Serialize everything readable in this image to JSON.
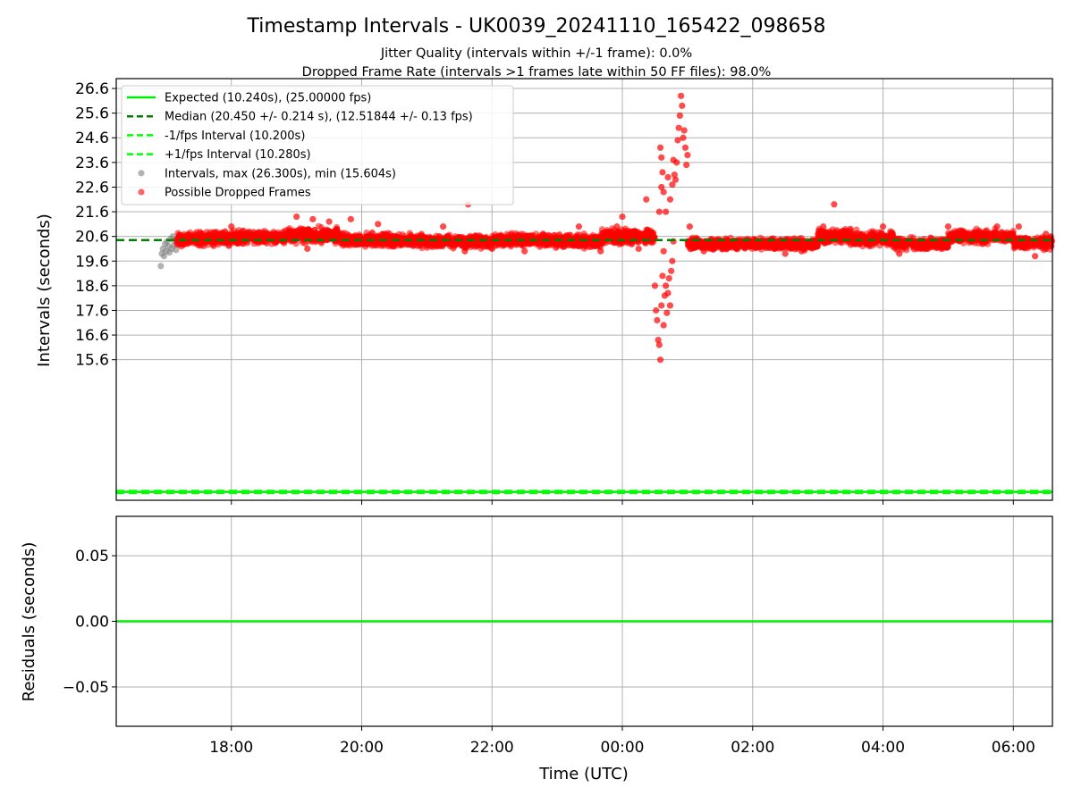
{
  "figure": {
    "title": "Timestamp Intervals - UK0039_20241110_165422_098658",
    "subtitle1": "Jitter Quality (intervals within +/-1 frame): 0.0%",
    "subtitle2": "Dropped Frame Rate (intervals >1 frames late within 50 FF files): 98.0%"
  },
  "colors": {
    "expected": "#00ee00",
    "median": "#008000",
    "fps_bounds": "#00ff00",
    "intervals": "#808080",
    "dropped": "#ff0000",
    "grid": "#b0b0b0",
    "residual_line": "#00ee00"
  },
  "chart_data": [
    {
      "type": "scatter",
      "xlabel": "",
      "ylabel": "Intervals (seconds)",
      "x_range": [
        "16:14",
        "06:36"
      ],
      "ylim": [
        9.9,
        27.0
      ],
      "y_ticks": [
        "15.6",
        "16.6",
        "17.6",
        "18.6",
        "19.6",
        "20.6",
        "21.6",
        "22.6",
        "23.6",
        "24.6",
        "25.6",
        "26.6"
      ],
      "grid": true,
      "legend_placement": "upper-left",
      "reference_lines": [
        {
          "name": "Expected (10.240s), (25.00000 fps)",
          "y": 10.24,
          "style": "solid",
          "color": "#00ee00"
        },
        {
          "name": "Median (20.450 +/- 0.214 s), (12.51844 +/- 0.13 fps)",
          "y": 20.45,
          "style": "dashed",
          "color": "#008000"
        },
        {
          "name": "-1/fps Interval (10.200s)",
          "y": 10.2,
          "style": "dashed",
          "color": "#00ff00"
        },
        {
          "name": "+1/fps Interval (10.280s)",
          "y": 10.28,
          "style": "dashed",
          "color": "#00ff00"
        }
      ],
      "series": [
        {
          "name": "Intervals, max (26.300s), min (15.604s)",
          "color": "#808080",
          "points": [
            [
              "16:55",
              19.4
            ],
            [
              "16:56",
              19.9
            ],
            [
              "16:57",
              20.1
            ],
            [
              "16:58",
              19.8
            ],
            [
              "16:59",
              20.3
            ],
            [
              "17:00",
              20.0
            ],
            [
              "17:01",
              20.4
            ],
            [
              "17:02",
              20.2
            ],
            [
              "17:03",
              19.95
            ],
            [
              "17:04",
              20.5
            ],
            [
              "17:05",
              20.1
            ],
            [
              "17:06",
              20.6
            ],
            [
              "17:07",
              20.25
            ],
            [
              "17:08",
              20.45
            ],
            [
              "17:09",
              20.05
            ]
          ]
        },
        {
          "name": "Possible Dropped Frames",
          "color": "#ff0000",
          "dense_bands": [
            {
              "from": "17:10",
              "to": "18:00",
              "center": 20.5,
              "spread": 0.35
            },
            {
              "from": "18:00",
              "to": "18:50",
              "center": 20.55,
              "spread": 0.35
            },
            {
              "from": "18:50",
              "to": "19:40",
              "center": 20.65,
              "spread": 0.4
            },
            {
              "from": "19:40",
              "to": "21:00",
              "center": 20.45,
              "spread": 0.35
            },
            {
              "from": "21:00",
              "to": "22:00",
              "center": 20.4,
              "spread": 0.35
            },
            {
              "from": "22:00",
              "to": "23:00",
              "center": 20.45,
              "spread": 0.35
            },
            {
              "from": "23:00",
              "to": "23:40",
              "center": 20.4,
              "spread": 0.35
            },
            {
              "from": "23:40",
              "to": "00:30",
              "center": 20.6,
              "spread": 0.4
            },
            {
              "from": "01:00",
              "to": "02:00",
              "center": 20.3,
              "spread": 0.3
            },
            {
              "from": "02:00",
              "to": "03:00",
              "center": 20.3,
              "spread": 0.3
            },
            {
              "from": "03:00",
              "to": "03:30",
              "center": 20.6,
              "spread": 0.4
            },
            {
              "from": "03:30",
              "to": "04:10",
              "center": 20.5,
              "spread": 0.4
            },
            {
              "from": "04:10",
              "to": "05:00",
              "center": 20.3,
              "spread": 0.3
            },
            {
              "from": "05:00",
              "to": "06:00",
              "center": 20.6,
              "spread": 0.35
            },
            {
              "from": "06:00",
              "to": "06:36",
              "center": 20.35,
              "spread": 0.35
            }
          ],
          "points": [
            [
              "18:00",
              21.0
            ],
            [
              "19:00",
              21.4
            ],
            [
              "19:15",
              21.3
            ],
            [
              "19:30",
              21.2
            ],
            [
              "19:10",
              20.1
            ],
            [
              "19:50",
              21.3
            ],
            [
              "20:15",
              21.1
            ],
            [
              "21:15",
              21.0
            ],
            [
              "21:35",
              20.0
            ],
            [
              "21:38",
              21.9
            ],
            [
              "22:00",
              20.1
            ],
            [
              "22:30",
              20.0
            ],
            [
              "23:20",
              21.0
            ],
            [
              "23:40",
              20.0
            ],
            [
              "23:55",
              21.0
            ],
            [
              "00:00",
              21.4
            ],
            [
              "00:15",
              20.1
            ],
            [
              "00:22",
              22.1
            ],
            [
              "00:28",
              20.5
            ],
            [
              "00:38",
              20.0
            ],
            [
              "00:30",
              18.6
            ],
            [
              "00:31",
              17.6
            ],
            [
              "00:32",
              17.2
            ],
            [
              "00:33",
              16.4
            ],
            [
              "00:34",
              16.2
            ],
            [
              "00:35",
              15.6
            ],
            [
              "00:36",
              17.8
            ],
            [
              "00:37",
              19.0
            ],
            [
              "00:38",
              17.0
            ],
            [
              "00:39",
              18.2
            ],
            [
              "00:40",
              18.6
            ],
            [
              "00:41",
              17.5
            ],
            [
              "00:42",
              18.3
            ],
            [
              "00:43",
              18.9
            ],
            [
              "00:44",
              17.8
            ],
            [
              "00:45",
              19.2
            ],
            [
              "00:46",
              19.6
            ],
            [
              "00:47",
              20.4
            ],
            [
              "00:34",
              21.6
            ],
            [
              "00:36",
              22.6
            ],
            [
              "00:37",
              23.2
            ],
            [
              "00:35",
              24.2
            ],
            [
              "00:36",
              23.8
            ],
            [
              "00:38",
              22.4
            ],
            [
              "00:40",
              21.6
            ],
            [
              "00:42",
              23.0
            ],
            [
              "00:44",
              22.1
            ],
            [
              "00:46",
              22.7
            ],
            [
              "00:47",
              23.7
            ],
            [
              "00:48",
              23.1
            ],
            [
              "00:49",
              22.9
            ],
            [
              "00:50",
              23.6
            ],
            [
              "00:51",
              24.5
            ],
            [
              "00:52",
              25.0
            ],
            [
              "00:53",
              25.5
            ],
            [
              "00:54",
              26.3
            ],
            [
              "00:55",
              25.9
            ],
            [
              "00:56",
              24.6
            ],
            [
              "00:57",
              24.9
            ],
            [
              "00:58",
              24.2
            ],
            [
              "00:59",
              23.5
            ],
            [
              "01:00",
              23.9
            ],
            [
              "01:02",
              21.0
            ],
            [
              "01:05",
              20.4
            ],
            [
              "01:15",
              20.0
            ],
            [
              "01:45",
              20.1
            ],
            [
              "02:30",
              19.9
            ],
            [
              "02:45",
              20.0
            ],
            [
              "03:05",
              21.0
            ],
            [
              "03:15",
              21.9
            ],
            [
              "03:30",
              20.9
            ],
            [
              "03:45",
              20.3
            ],
            [
              "04:00",
              21.0
            ],
            [
              "04:15",
              19.9
            ],
            [
              "04:40",
              20.1
            ],
            [
              "05:00",
              21.0
            ],
            [
              "05:45",
              21.0
            ],
            [
              "06:05",
              21.0
            ],
            [
              "06:20",
              19.8
            ],
            [
              "06:30",
              20.7
            ]
          ]
        }
      ]
    },
    {
      "type": "line",
      "xlabel": "Time (UTC)",
      "ylabel": "Residuals (seconds)",
      "ylim": [
        -0.08,
        0.08
      ],
      "y_ticks": [
        "0.05",
        "0.00",
        "−0.05"
      ],
      "x_ticks": [
        "18:00",
        "20:00",
        "22:00",
        "00:00",
        "02:00",
        "04:00",
        "06:00"
      ],
      "grid": true,
      "series": [
        {
          "color": "#00ee00",
          "points": [
            [
              "16:14",
              0.0
            ],
            [
              "06:36",
              0.0
            ]
          ]
        }
      ]
    }
  ]
}
